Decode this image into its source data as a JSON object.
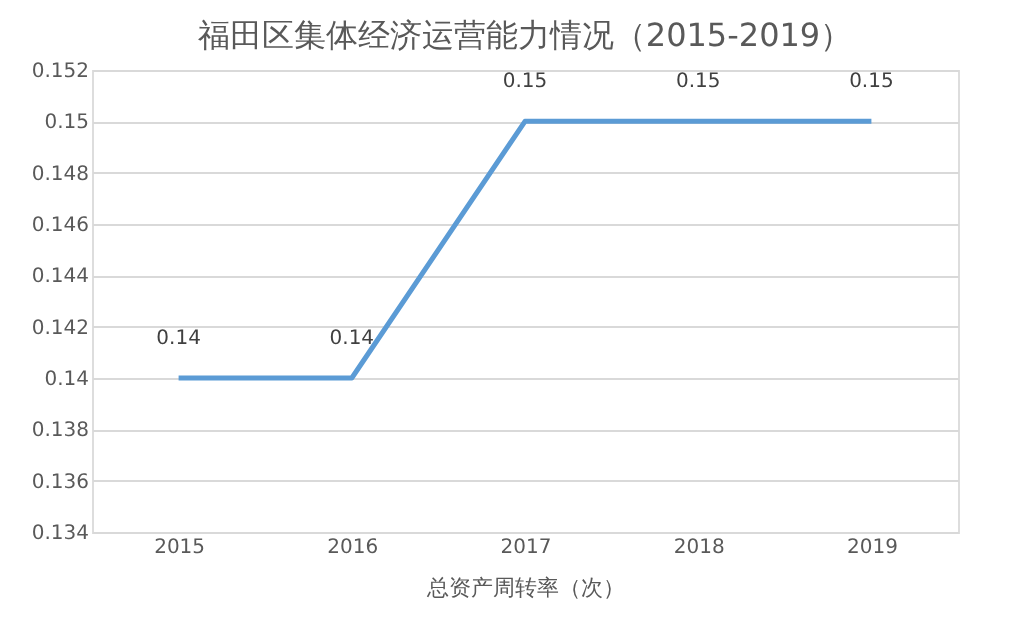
{
  "chart_data": {
    "type": "line",
    "title": "福田区集体经济运营能力情况（2015-2019）",
    "xlabel": "总资产周转率（次）",
    "categories": [
      "2015",
      "2016",
      "2017",
      "2018",
      "2019"
    ],
    "series": [
      {
        "color": "#5b9bd5",
        "values": [
          0.14,
          0.14,
          0.15,
          0.15,
          0.15
        ]
      }
    ],
    "ylim": [
      0.134,
      0.152
    ],
    "yticks": [
      0.134,
      0.136,
      0.138,
      0.14,
      0.142,
      0.144,
      0.146,
      0.148,
      0.15,
      0.152
    ],
    "grid": "y",
    "data_labels": true,
    "marker": "none",
    "line_style": "solid"
  }
}
